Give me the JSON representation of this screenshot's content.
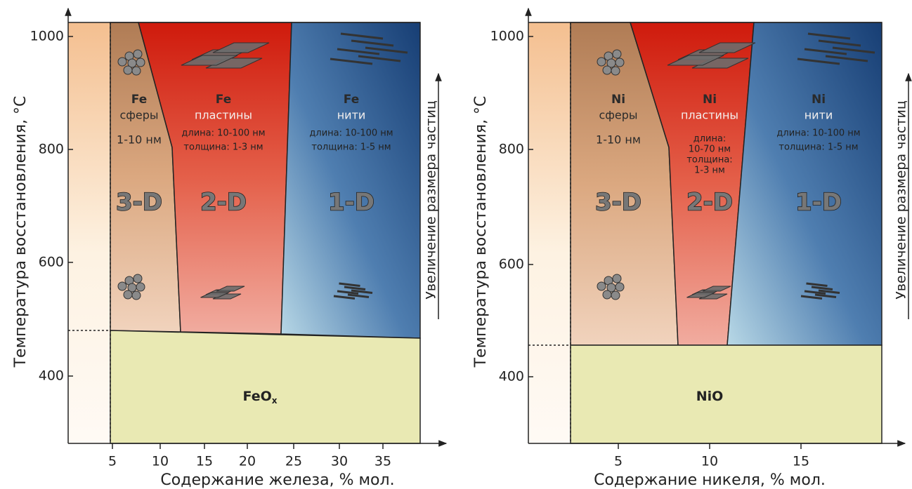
{
  "panels": [
    {
      "y_axis_label": "Температура восстановления, °C",
      "x_axis_label": "Содержание железа, % мол.",
      "yticks": [
        1000,
        800,
        600,
        400
      ],
      "xticks": [
        5,
        10,
        15,
        20,
        25,
        30,
        35
      ],
      "regions": [
        {
          "element": "Fe",
          "shape": "сферы",
          "details": [
            "1-10 нм"
          ],
          "dimension": "3-D"
        },
        {
          "element": "Fe",
          "shape": "пластины",
          "details": [
            "длина: 10-100 нм",
            "толщина: 1-3 нм"
          ],
          "dimension": "2-D"
        },
        {
          "element": "Fe",
          "shape": "нити",
          "details": [
            "длина: 10-100 нм",
            "толщина: 1-5 нм"
          ],
          "dimension": "1-D"
        }
      ],
      "oxide": {
        "text": "FeO",
        "subscript": "x"
      }
    },
    {
      "y_axis_label": "Температура восстановления, °C",
      "x_axis_label": "Содержание никеля, % мол.",
      "yticks": [
        1000,
        800,
        600,
        400
      ],
      "xticks": [
        5,
        10,
        15
      ],
      "regions": [
        {
          "element": "Ni",
          "shape": "сферы",
          "details": [
            "1-10 нм"
          ],
          "dimension": "3-D"
        },
        {
          "element": "Ni",
          "shape": "пластины",
          "details": [
            "длина:",
            "10-70 нм",
            "толщина:",
            "1-3 нм"
          ],
          "dimension": "2-D"
        },
        {
          "element": "Ni",
          "shape": "нити",
          "details": [
            "длина: 10-100 нм",
            "толщина: 1-5 нм"
          ],
          "dimension": "1-D"
        }
      ],
      "oxide": {
        "text": "NiO"
      }
    }
  ],
  "side_label": "Увеличение размера частиц"
}
